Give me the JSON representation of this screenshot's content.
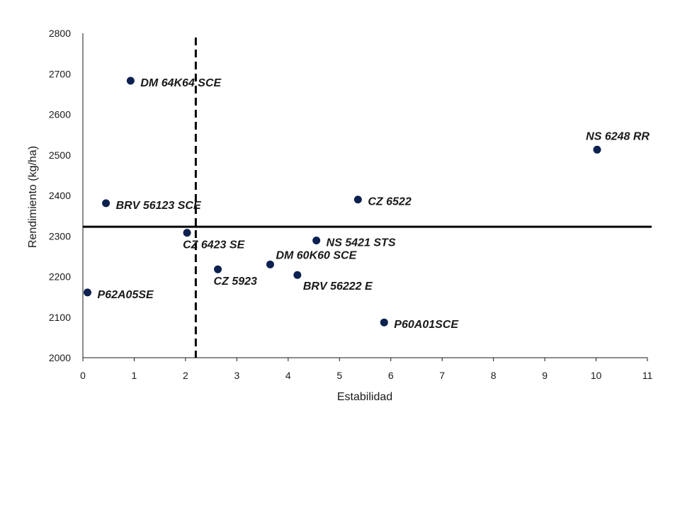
{
  "chart_data": {
    "type": "scatter",
    "title": "",
    "xlabel": "Estabilidad",
    "ylabel": "Rendimiento (kg/ha)",
    "xlim": [
      0,
      11
    ],
    "ylim": [
      2000,
      2800
    ],
    "xticks": [
      0,
      1,
      2,
      3,
      4,
      5,
      6,
      7,
      8,
      9,
      10,
      11
    ],
    "yticks": [
      2000,
      2100,
      2200,
      2300,
      2400,
      2500,
      2600,
      2700,
      2800
    ],
    "grid": false,
    "marker_color": "#0d2150",
    "reference_lines": {
      "vertical_x": 2.2,
      "vertical_style": "dashed",
      "horizontal_y": 2323,
      "horizontal_style": "solid"
    },
    "points": [
      {
        "label": "DM 64K64 SCE",
        "x": 0.93,
        "y": 2683,
        "label_pos": "right"
      },
      {
        "label": "NS 6248 RR",
        "x": 10.02,
        "y": 2513,
        "label_pos": "above-left"
      },
      {
        "label": "BRV 56123 SCE",
        "x": 0.45,
        "y": 2381,
        "label_pos": "right"
      },
      {
        "label": "CZ 6522",
        "x": 5.36,
        "y": 2390,
        "label_pos": "right"
      },
      {
        "label": "CZ 6423 SE",
        "x": 2.03,
        "y": 2308,
        "label_pos": "below"
      },
      {
        "label": "NS 5421 STS",
        "x": 4.55,
        "y": 2289,
        "label_pos": "right"
      },
      {
        "label": "DM 60K60 SCE",
        "x": 3.65,
        "y": 2230,
        "label_pos": "above-right"
      },
      {
        "label": "CZ 5923",
        "x": 2.63,
        "y": 2218,
        "label_pos": "below"
      },
      {
        "label": "BRV 56222 E",
        "x": 4.18,
        "y": 2204,
        "label_pos": "below-right"
      },
      {
        "label": "P62A05SE",
        "x": 0.09,
        "y": 2161,
        "label_pos": "right"
      },
      {
        "label": "P60A01SCE",
        "x": 5.87,
        "y": 2087,
        "label_pos": "right"
      }
    ]
  }
}
